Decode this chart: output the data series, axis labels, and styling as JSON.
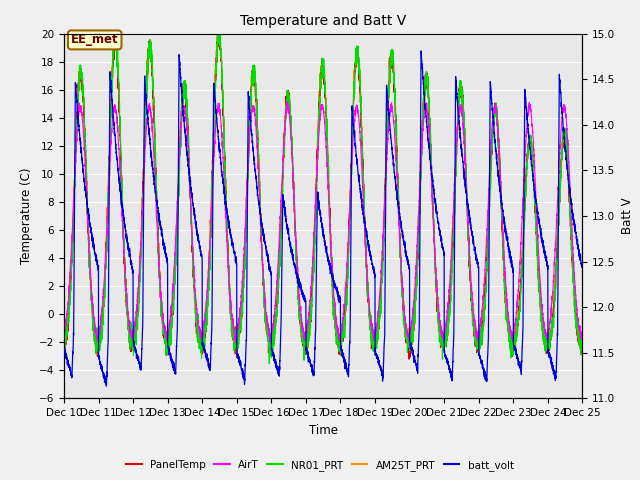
{
  "title": "Temperature and Batt V",
  "xlabel": "Time",
  "ylabel_left": "Temperature (C)",
  "ylabel_right": "Batt V",
  "annotation": "EE_met",
  "ylim_left": [
    -6,
    20
  ],
  "ylim_right": [
    11.0,
    15.0
  ],
  "yticks_left": [
    -6,
    -4,
    -2,
    0,
    2,
    4,
    6,
    8,
    10,
    12,
    14,
    16,
    18,
    20
  ],
  "yticks_right": [
    11.0,
    11.5,
    12.0,
    12.5,
    13.0,
    13.5,
    14.0,
    14.5,
    15.0
  ],
  "xtick_labels": [
    "Dec 10",
    "Dec 11",
    "Dec 12",
    "Dec 13",
    "Dec 14",
    "Dec 15",
    "Dec 16",
    "Dec 17",
    "Dec 18",
    "Dec 19",
    "Dec 20",
    "Dec 21",
    "Dec 22",
    "Dec 23",
    "Dec 24",
    "Dec 25"
  ],
  "colors": {
    "PanelTemp": "#dd0000",
    "AirT": "#ff00ff",
    "NR01_PRT": "#00dd00",
    "AM25T_PRT": "#ff8800",
    "batt_volt": "#0000dd"
  },
  "bg_outer": "#f0f0f0",
  "bg_inner": "#e8e8e8",
  "figsize": [
    6.4,
    4.8
  ],
  "dpi": 100
}
